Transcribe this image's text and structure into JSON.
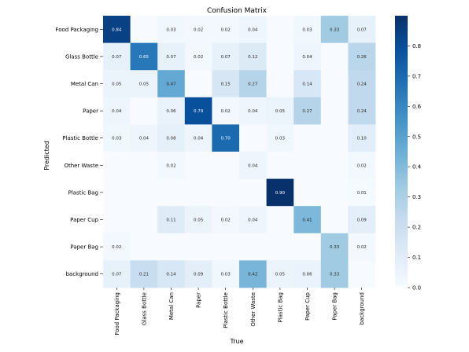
{
  "chart_data": {
    "type": "heatmap",
    "title": "Confusion Matrix",
    "xlabel": "True",
    "ylabel": "Predicted",
    "x_categories": [
      "Food Packaging",
      "Glass Bottle",
      "Metal Can",
      "Paper",
      "Plastic Bottle",
      "Other Waste",
      "Plastic Bag",
      "Paper Cup",
      "Paper Bag",
      "background"
    ],
    "y_categories": [
      "Food Packaging",
      "Glass Bottle",
      "Metal Can",
      "Paper",
      "Plastic Bottle",
      "Other Waste",
      "Plastic Bag",
      "Paper Cup",
      "Paper Bag",
      "background"
    ],
    "matrix": [
      [
        0.84,
        null,
        0.03,
        0.02,
        0.02,
        0.04,
        null,
        0.03,
        0.33,
        0.07
      ],
      [
        0.07,
        0.65,
        0.07,
        0.02,
        0.07,
        0.12,
        null,
        0.04,
        null,
        0.26
      ],
      [
        0.05,
        0.05,
        0.47,
        null,
        0.15,
        0.27,
        null,
        0.14,
        null,
        0.24
      ],
      [
        0.04,
        null,
        0.06,
        0.79,
        0.02,
        0.04,
        0.05,
        0.27,
        null,
        0.24
      ],
      [
        0.03,
        0.04,
        0.08,
        0.04,
        0.7,
        null,
        0.03,
        null,
        null,
        0.1
      ],
      [
        null,
        null,
        0.02,
        null,
        null,
        0.04,
        null,
        null,
        null,
        0.02
      ],
      [
        null,
        null,
        null,
        null,
        null,
        null,
        0.9,
        null,
        null,
        0.01
      ],
      [
        null,
        null,
        0.11,
        0.05,
        0.02,
        0.04,
        null,
        0.41,
        null,
        0.09
      ],
      [
        0.02,
        null,
        null,
        null,
        null,
        null,
        null,
        null,
        0.33,
        0.02
      ],
      [
        0.07,
        0.21,
        0.14,
        0.09,
        0.03,
        0.42,
        0.05,
        0.06,
        0.33,
        null
      ]
    ],
    "colorbar": {
      "range": [
        0,
        0.9
      ],
      "ticks": [
        "0.0",
        "0.1",
        "0.2",
        "0.3",
        "0.4",
        "0.5",
        "0.6",
        "0.7",
        "0.8"
      ],
      "colormap": "Blues"
    }
  }
}
